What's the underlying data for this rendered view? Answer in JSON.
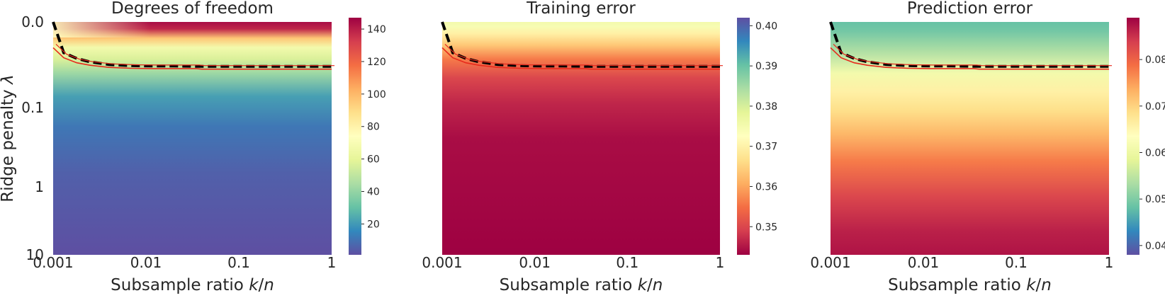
{
  "chart_data": [
    {
      "type": "heatmap",
      "title": "Degrees of freedom",
      "xlabel": "Subsample ratio k/n",
      "ylabel": "Ridge penalty λ",
      "x_ticks": [
        "0.001",
        "0.01",
        "0.1",
        "1"
      ],
      "y_ticks": [
        "0.0",
        "0.1",
        "1",
        "10"
      ],
      "x_scale": "log",
      "y_scale": "log",
      "xlim": [
        0.001,
        1
      ],
      "ylim": [
        0,
        10
      ],
      "colormap": "Spectral_r",
      "colorbar": {
        "ticks": [
          20,
          40,
          60,
          80,
          100,
          120,
          140
        ],
        "range": [
          1,
          147
        ]
      },
      "lines": [
        {
          "style": "dashed",
          "color": "#000000",
          "x": [
            0.001,
            0.0013,
            0.0018,
            0.0025,
            0.004,
            0.007,
            0.012,
            0.02,
            0.035,
            0.04,
            0.1,
            0.3,
            1
          ],
          "y": [
            0.0,
            0.0012,
            0.0019,
            0.0025,
            0.0031,
            0.0034,
            0.0035,
            0.0035,
            0.0036,
            0.0036,
            0.0036,
            0.0036,
            0.0036
          ]
        },
        {
          "style": "solid",
          "color": "#e8291c",
          "x": [
            0.001,
            0.0013,
            0.0018,
            0.0025,
            0.004,
            0.007,
            0.012,
            0.02,
            0.035,
            0.04,
            0.1,
            0.3,
            1
          ],
          "y": [
            0.0008,
            0.0018,
            0.0027,
            0.0033,
            0.0039,
            0.0042,
            0.0043,
            0.0043,
            0.0043,
            0.0045,
            0.0045,
            0.0045,
            0.0045
          ]
        }
      ]
    },
    {
      "type": "heatmap",
      "title": "Training error",
      "xlabel": "Subsample ratio k/n",
      "ylabel": "",
      "x_ticks": [
        "0.001",
        "0.01",
        "0.1",
        "1"
      ],
      "x_scale": "log",
      "y_scale": "log",
      "xlim": [
        0.001,
        1
      ],
      "ylim": [
        0,
        10
      ],
      "colormap": "Spectral",
      "colorbar": {
        "ticks": [
          0.35,
          0.36,
          0.37,
          0.38,
          0.39,
          0.4
        ],
        "range": [
          0.343,
          0.402
        ]
      },
      "lines": [
        {
          "style": "dashed",
          "color": "#000000",
          "x": [
            0.001,
            0.0013,
            0.0018,
            0.0025,
            0.004,
            0.007,
            0.012,
            0.02,
            0.035,
            0.04,
            0.1,
            0.3,
            1
          ],
          "y": [
            0.0,
            0.0012,
            0.0019,
            0.0025,
            0.0031,
            0.0034,
            0.0035,
            0.0035,
            0.0036,
            0.0036,
            0.0036,
            0.0036,
            0.0036
          ]
        },
        {
          "style": "solid",
          "color": "#e8291c",
          "x": [
            0.001,
            0.0013,
            0.0018,
            0.0025,
            0.004,
            0.007,
            0.012,
            0.02,
            0.035,
            0.04,
            0.1,
            0.3,
            1
          ],
          "y": [
            0.0008,
            0.0018,
            0.0027,
            0.0033,
            0.0039,
            0.0042,
            0.0043,
            0.0043,
            0.0043,
            0.0045,
            0.0045,
            0.0045,
            0.0045
          ]
        }
      ]
    },
    {
      "type": "heatmap",
      "title": "Prediction error",
      "xlabel": "Subsample ratio k/n",
      "ylabel": "",
      "x_ticks": [
        "0.001",
        "0.01",
        "0.1",
        "1"
      ],
      "x_scale": "log",
      "y_scale": "log",
      "xlim": [
        0.001,
        1
      ],
      "ylim": [
        0,
        10
      ],
      "colormap": "Spectral_r",
      "colorbar": {
        "ticks": [
          0.04,
          0.05,
          0.06,
          0.07,
          0.08
        ],
        "range": [
          0.038,
          0.089
        ]
      },
      "lines": [
        {
          "style": "dashed",
          "color": "#000000",
          "x": [
            0.001,
            0.0013,
            0.0018,
            0.0025,
            0.004,
            0.007,
            0.012,
            0.02,
            0.035,
            0.04,
            0.1,
            0.3,
            1
          ],
          "y": [
            0.0,
            0.0012,
            0.0019,
            0.0025,
            0.0031,
            0.0034,
            0.0035,
            0.0035,
            0.0036,
            0.0036,
            0.0036,
            0.0036,
            0.0036
          ]
        },
        {
          "style": "solid",
          "color": "#e8291c",
          "x": [
            0.001,
            0.0013,
            0.0018,
            0.0025,
            0.004,
            0.007,
            0.012,
            0.02,
            0.035,
            0.04,
            0.1,
            0.3,
            1
          ],
          "y": [
            0.0008,
            0.0018,
            0.0027,
            0.0033,
            0.0039,
            0.0042,
            0.0043,
            0.0043,
            0.0043,
            0.0045,
            0.0045,
            0.0045,
            0.0045
          ]
        }
      ]
    }
  ]
}
